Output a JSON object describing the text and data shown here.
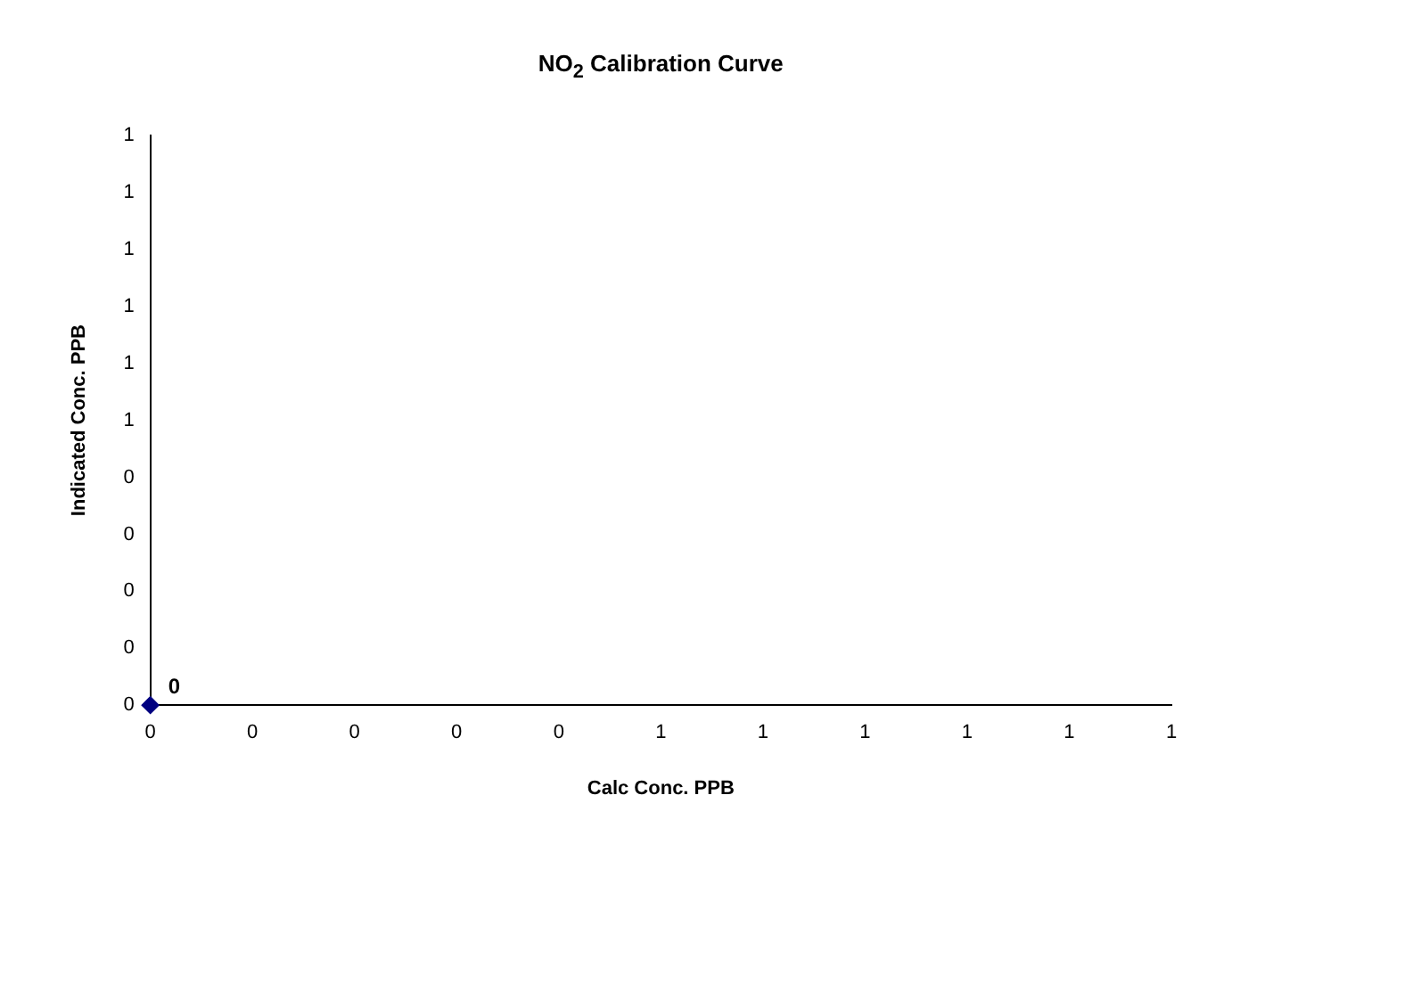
{
  "chart_data": {
    "type": "scatter",
    "title": "NO$_{2}$ Calibration Curve",
    "xlabel": "Calc Conc. PPB",
    "ylabel": "Indicated Conc. PPB",
    "x": [
      0
    ],
    "values": [
      0
    ],
    "color": "#000080",
    "marker": "diamond",
    "data_labels": true,
    "grid": false,
    "legend": false,
    "xlim": [
      0,
      1
    ],
    "ylim": [
      0,
      1
    ],
    "xticks": [
      0,
      {
        "value": 0.1,
        "label": "0"
      },
      {
        "value": 0.2,
        "label": "0"
      },
      {
        "value": 0.3,
        "label": "0"
      },
      {
        "value": 0.4,
        "label": "0"
      },
      {
        "value": 0.5,
        "label": "1"
      },
      {
        "value": 0.6,
        "label": "1"
      },
      {
        "value": 0.7,
        "label": "1"
      },
      {
        "value": 0.8,
        "label": "1"
      },
      {
        "value": 0.9,
        "label": "1"
      },
      1
    ],
    "yticks": [
      0,
      {
        "value": 0.1,
        "label": "0"
      },
      {
        "value": 0.2,
        "label": "0"
      },
      {
        "value": 0.3,
        "label": "0"
      },
      {
        "value": 0.4,
        "label": "0"
      },
      {
        "value": 0.5,
        "label": "1"
      },
      {
        "value": 0.6,
        "label": "1"
      },
      {
        "value": 0.7,
        "label": "1"
      },
      {
        "value": 0.8,
        "label": "1"
      },
      {
        "value": 0.9,
        "label": "1"
      },
      1
    ]
  }
}
